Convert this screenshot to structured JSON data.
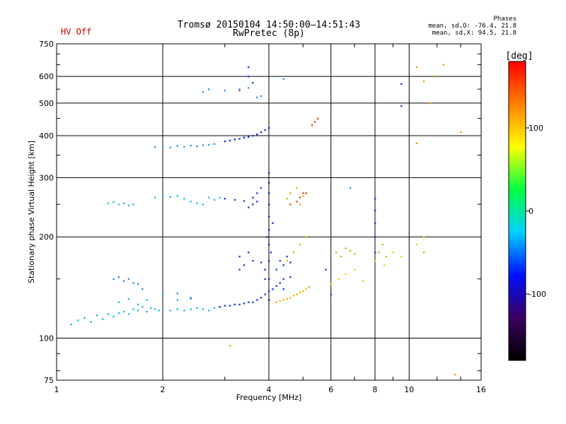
{
  "header": {
    "title": "Tromsø 20150104 14:50:00–14:51:43",
    "subtitle": "RwPretec (8p)",
    "status": "HV Off"
  },
  "stats": {
    "heading": "Phases",
    "line_o": "mean, sd,O: -76.4, 21.8",
    "line_x": "mean, sd,X:  94.5, 21.8"
  },
  "chart_data": {
    "type": "scatter",
    "xlabel": "Frequency [MHz]",
    "ylabel": "Stationary phase Virtual Height [km]",
    "x_scale": "log",
    "y_scale": "log",
    "xlim": [
      1,
      16
    ],
    "ylim": [
      75,
      750
    ],
    "xticks": [
      1,
      2,
      4,
      6,
      8,
      10,
      16
    ],
    "xtick_labels": [
      "1",
      "2",
      "4",
      "6",
      "8",
      "10",
      "16"
    ],
    "yticks": [
      75,
      100,
      200,
      300,
      400,
      500,
      600,
      750
    ],
    "ytick_labels": [
      "75",
      "100",
      "200",
      "300",
      "400",
      "500",
      "600",
      "750"
    ],
    "grid": true,
    "colorbar": {
      "label": "[deg]",
      "range": [
        -180,
        180
      ],
      "ticks": [
        100,
        0,
        -100
      ],
      "tick_labels": [
        "100",
        "0",
        "-100"
      ],
      "colors": [
        "#000000",
        "#3a0060",
        "#0010ff",
        "#00d0ff",
        "#00ff40",
        "#ffff00",
        "#ff8000",
        "#ff0000"
      ]
    },
    "series": [
      {
        "color": "#28b4e6",
        "points": [
          [
            1.1,
            110
          ],
          [
            1.15,
            113
          ],
          [
            1.2,
            115
          ],
          [
            1.25,
            112
          ],
          [
            1.3,
            117
          ],
          [
            1.35,
            114
          ],
          [
            1.4,
            118
          ],
          [
            1.45,
            116
          ],
          [
            1.5,
            119
          ],
          [
            1.55,
            120
          ],
          [
            1.6,
            118
          ],
          [
            1.65,
            122
          ],
          [
            1.7,
            121
          ],
          [
            1.75,
            124
          ],
          [
            1.8,
            120
          ],
          [
            1.85,
            123
          ],
          [
            1.9,
            122
          ],
          [
            1.95,
            121
          ],
          [
            2.0,
            122
          ],
          [
            2.1,
            121
          ],
          [
            2.2,
            122
          ],
          [
            2.3,
            121
          ],
          [
            2.4,
            122
          ],
          [
            2.5,
            123
          ],
          [
            2.6,
            122
          ],
          [
            2.7,
            121
          ],
          [
            2.8,
            123
          ],
          [
            2.9,
            124
          ],
          [
            1.5,
            128
          ],
          [
            1.6,
            131
          ],
          [
            1.7,
            126
          ],
          [
            1.8,
            130
          ],
          [
            2.0,
            135
          ],
          [
            2.2,
            130
          ],
          [
            2.4,
            131
          ]
        ]
      },
      {
        "color": "#3a8ae8",
        "points": [
          [
            1.45,
            150
          ],
          [
            1.5,
            152
          ],
          [
            1.55,
            148
          ],
          [
            1.6,
            150
          ],
          [
            1.65,
            146
          ],
          [
            1.7,
            145
          ],
          [
            1.75,
            140
          ],
          [
            2.0,
            138
          ],
          [
            2.2,
            136
          ],
          [
            2.4,
            132
          ]
        ]
      },
      {
        "color": "#2ac0e0",
        "points": [
          [
            1.4,
            252
          ],
          [
            1.45,
            254
          ],
          [
            1.5,
            250
          ],
          [
            1.55,
            252
          ],
          [
            1.6,
            248
          ],
          [
            1.65,
            250
          ],
          [
            1.9,
            262
          ],
          [
            2.0,
            265
          ],
          [
            2.1,
            263
          ],
          [
            2.2,
            265
          ],
          [
            2.3,
            260
          ],
          [
            2.4,
            255
          ],
          [
            2.5,
            252
          ],
          [
            2.6,
            250
          ],
          [
            2.7,
            262
          ],
          [
            2.8,
            258
          ],
          [
            2.9,
            262
          ]
        ]
      },
      {
        "color": "#3a96e6",
        "points": [
          [
            1.9,
            370
          ],
          [
            2.0,
            372
          ],
          [
            2.1,
            369
          ],
          [
            2.2,
            373
          ],
          [
            2.3,
            371
          ],
          [
            2.4,
            374
          ],
          [
            2.5,
            372
          ],
          [
            2.6,
            375
          ],
          [
            2.7,
            376
          ],
          [
            2.8,
            378
          ]
        ]
      },
      {
        "color": "#1e3ed8",
        "points": [
          [
            2.9,
            124
          ],
          [
            3.0,
            125
          ],
          [
            3.1,
            125
          ],
          [
            3.2,
            126
          ],
          [
            3.3,
            126
          ],
          [
            3.4,
            127
          ],
          [
            3.5,
            128
          ],
          [
            3.6,
            128
          ],
          [
            3.7,
            130
          ],
          [
            3.8,
            132
          ],
          [
            3.9,
            135
          ],
          [
            4.0,
            138
          ],
          [
            4.1,
            140
          ],
          [
            4.2,
            143
          ],
          [
            4.3,
            146
          ],
          [
            4.4,
            150
          ]
        ]
      },
      {
        "color": "#1a2ec8",
        "points": [
          [
            3.0,
            385
          ],
          [
            3.1,
            387
          ],
          [
            3.2,
            390
          ],
          [
            3.3,
            392
          ],
          [
            3.4,
            395
          ],
          [
            3.5,
            397
          ],
          [
            3.6,
            400
          ],
          [
            3.7,
            404
          ],
          [
            3.8,
            410
          ],
          [
            3.9,
            416
          ],
          [
            4.0,
            422
          ]
        ]
      },
      {
        "color": "#2228cc",
        "points": [
          [
            4.0,
            130
          ],
          [
            4.0,
            150
          ],
          [
            4.0,
            170
          ],
          [
            4.0,
            190
          ],
          [
            4.0,
            210
          ],
          [
            4.0,
            230
          ],
          [
            4.0,
            250
          ],
          [
            4.0,
            270
          ],
          [
            4.0,
            290
          ],
          [
            4.0,
            310
          ],
          [
            3.95,
            200
          ],
          [
            4.05,
            180
          ],
          [
            4.1,
            220
          ],
          [
            3.9,
            160
          ]
        ]
      },
      {
        "color": "#1e40d6",
        "points": [
          [
            3.0,
            260
          ],
          [
            3.2,
            258
          ],
          [
            3.4,
            256
          ],
          [
            3.6,
            262
          ],
          [
            3.7,
            270
          ],
          [
            3.8,
            280
          ],
          [
            3.5,
            245
          ],
          [
            3.6,
            250
          ],
          [
            3.7,
            255
          ],
          [
            3.3,
            160
          ],
          [
            3.4,
            165
          ],
          [
            3.6,
            170
          ],
          [
            3.8,
            168
          ],
          [
            3.9,
            150
          ],
          [
            4.2,
            160
          ],
          [
            4.3,
            170
          ],
          [
            4.4,
            165
          ],
          [
            4.5,
            175
          ],
          [
            4.6,
            168
          ],
          [
            3.3,
            175
          ],
          [
            3.5,
            180
          ],
          [
            4.6,
            152
          ],
          [
            4.4,
            140
          ]
        ]
      },
      {
        "color": "#e8b800",
        "points": [
          [
            4.2,
            128
          ],
          [
            4.3,
            129
          ],
          [
            4.4,
            130
          ],
          [
            4.5,
            131
          ],
          [
            4.6,
            132
          ],
          [
            4.7,
            134
          ],
          [
            4.8,
            135
          ],
          [
            4.9,
            137
          ],
          [
            5.0,
            138
          ],
          [
            5.1,
            140
          ],
          [
            5.2,
            142
          ],
          [
            4.5,
            170
          ],
          [
            4.7,
            180
          ],
          [
            4.9,
            190
          ],
          [
            5.1,
            200
          ],
          [
            4.5,
            260
          ],
          [
            4.6,
            270
          ],
          [
            4.8,
            280
          ],
          [
            5.0,
            265
          ],
          [
            4.9,
            250
          ]
        ]
      },
      {
        "color": "#e05018",
        "points": [
          [
            4.6,
            250
          ],
          [
            4.8,
            255
          ],
          [
            4.9,
            262
          ],
          [
            5.0,
            270
          ],
          [
            5.1,
            270
          ],
          [
            5.3,
            430
          ],
          [
            5.4,
            440
          ],
          [
            5.5,
            450
          ],
          [
            3.3,
            545
          ]
        ]
      },
      {
        "color": "#a0d000",
        "points": [
          [
            6.2,
            180
          ],
          [
            6.4,
            175
          ],
          [
            6.6,
            185
          ],
          [
            6.8,
            182
          ],
          [
            7.0,
            178
          ],
          [
            8.2,
            180
          ],
          [
            8.4,
            190
          ],
          [
            8.6,
            175
          ]
        ]
      },
      {
        "color": "#ffd000",
        "points": [
          [
            6.0,
            145
          ],
          [
            6.3,
            150
          ],
          [
            6.6,
            155
          ],
          [
            7.0,
            160
          ],
          [
            7.4,
            148
          ],
          [
            8.0,
            170
          ],
          [
            8.5,
            165
          ],
          [
            9.0,
            180
          ],
          [
            9.5,
            175
          ],
          [
            10.5,
            190
          ],
          [
            11.0,
            200
          ]
        ]
      },
      {
        "color": "#1e3ed8",
        "points": [
          [
            5.8,
            160
          ],
          [
            6.0,
            135
          ],
          [
            8.0,
            180
          ],
          [
            8.0,
            200
          ],
          [
            8.0,
            220
          ],
          [
            8.0,
            240
          ],
          [
            8.0,
            260
          ],
          [
            9.5,
            570
          ],
          [
            9.5,
            490
          ],
          [
            3.5,
            640
          ],
          [
            3.5,
            600
          ],
          [
            3.6,
            575
          ]
        ]
      },
      {
        "color": "#3a9ae0",
        "points": [
          [
            2.6,
            540
          ],
          [
            2.7,
            550
          ],
          [
            3.0,
            545
          ],
          [
            3.3,
            550
          ],
          [
            3.5,
            555
          ],
          [
            3.7,
            520
          ],
          [
            3.8,
            525
          ],
          [
            4.4,
            590
          ],
          [
            6.8,
            280
          ]
        ]
      },
      {
        "color": "#e8a000",
        "points": [
          [
            10.5,
            640
          ],
          [
            12.5,
            650
          ],
          [
            11.0,
            580
          ],
          [
            12.0,
            600
          ],
          [
            11.5,
            500
          ],
          [
            14.0,
            410
          ],
          [
            10.5,
            380
          ],
          [
            11.0,
            180
          ],
          [
            13.5,
            78
          ],
          [
            3.1,
            95
          ]
        ]
      }
    ]
  }
}
